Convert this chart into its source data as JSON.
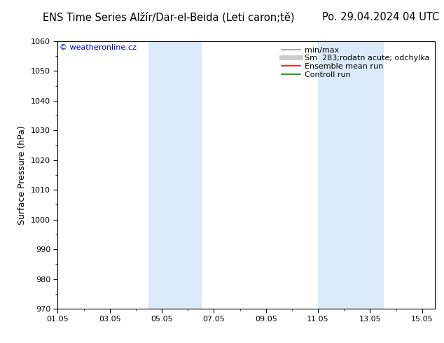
{
  "title_left": "ENS Time Series Alžír/Dar-el-Beida (Leti caron;tě)",
  "title_right": "Po. 29.04.2024 04 UTC",
  "ylabel": "Surface Pressure (hPa)",
  "ylim": [
    970,
    1060
  ],
  "yticks": [
    970,
    980,
    990,
    1000,
    1010,
    1020,
    1030,
    1040,
    1050,
    1060
  ],
  "xlim": [
    0,
    14.5
  ],
  "xtick_labels": [
    "01.05",
    "03.05",
    "05.05",
    "07.05",
    "09.05",
    "11.05",
    "13.05",
    "15.05"
  ],
  "xtick_positions": [
    0,
    2,
    4,
    6,
    8,
    10,
    12,
    14
  ],
  "shade_bands": [
    {
      "x_start": 3.5,
      "x_end": 5.5
    },
    {
      "x_start": 10.0,
      "x_end": 12.5
    }
  ],
  "shade_color": "#daeaf8",
  "background_color": "#ffffff",
  "watermark_text": "© weatheronline.cz",
  "watermark_color": "#0000cc",
  "legend_entries": [
    {
      "label": "min/max",
      "color": "#999999",
      "lw": 1.2,
      "ls": "-"
    },
    {
      "label": "Sm  283;rodatn acute; odchylka",
      "color": "#cccccc",
      "lw": 5,
      "ls": "-"
    },
    {
      "label": "Ensemble mean run",
      "color": "#ff0000",
      "lw": 1.2,
      "ls": "-"
    },
    {
      "label": "Controll run",
      "color": "#008800",
      "lw": 1.2,
      "ls": "-"
    }
  ],
  "title_fontsize": 10.5,
  "ylabel_fontsize": 9,
  "tick_fontsize": 8,
  "legend_fontsize": 8,
  "watermark_fontsize": 8
}
